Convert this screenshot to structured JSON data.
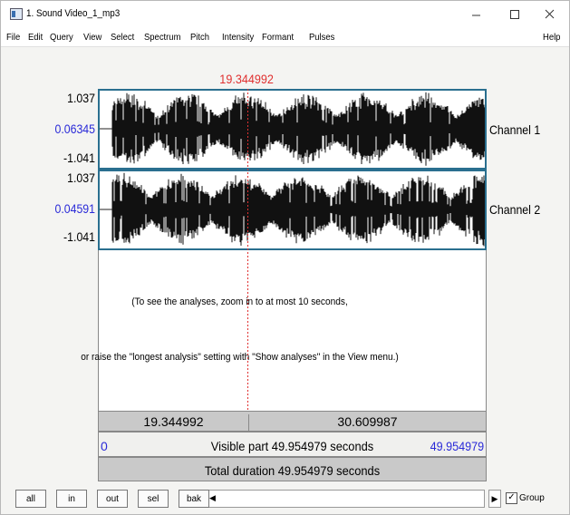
{
  "window": {
    "title": "1. Sound Video_1_mp3"
  },
  "menu": {
    "items": [
      "File",
      "Edit",
      "Query",
      "View",
      "Select",
      "Spectrum",
      "Pitch",
      "Intensity",
      "Formant",
      "Pulses"
    ],
    "help": "Help"
  },
  "cursor_time": "19.344992",
  "channels": [
    {
      "label": "Channel 1",
      "max": "1.037",
      "value": "0.06345",
      "min": "-1.041"
    },
    {
      "label": "Channel 2",
      "max": "1.037",
      "value": "0.04591",
      "min": "-1.041"
    }
  ],
  "message": [
    "(To see the analyses, zoom in to at most 10 seconds,",
    "or raise the \"longest analysis\" setting with \"Show analyses\" in the View menu.)"
  ],
  "selection_bar": {
    "left": "19.344992",
    "right": "30.609987"
  },
  "visible_bar": {
    "start": "0",
    "label": "Visible part 49.954979 seconds",
    "end": "49.954979"
  },
  "total_bar": "Total duration 49.954979 seconds",
  "buttons": [
    "all",
    "in",
    "out",
    "sel",
    "bak"
  ],
  "group": "Group"
}
